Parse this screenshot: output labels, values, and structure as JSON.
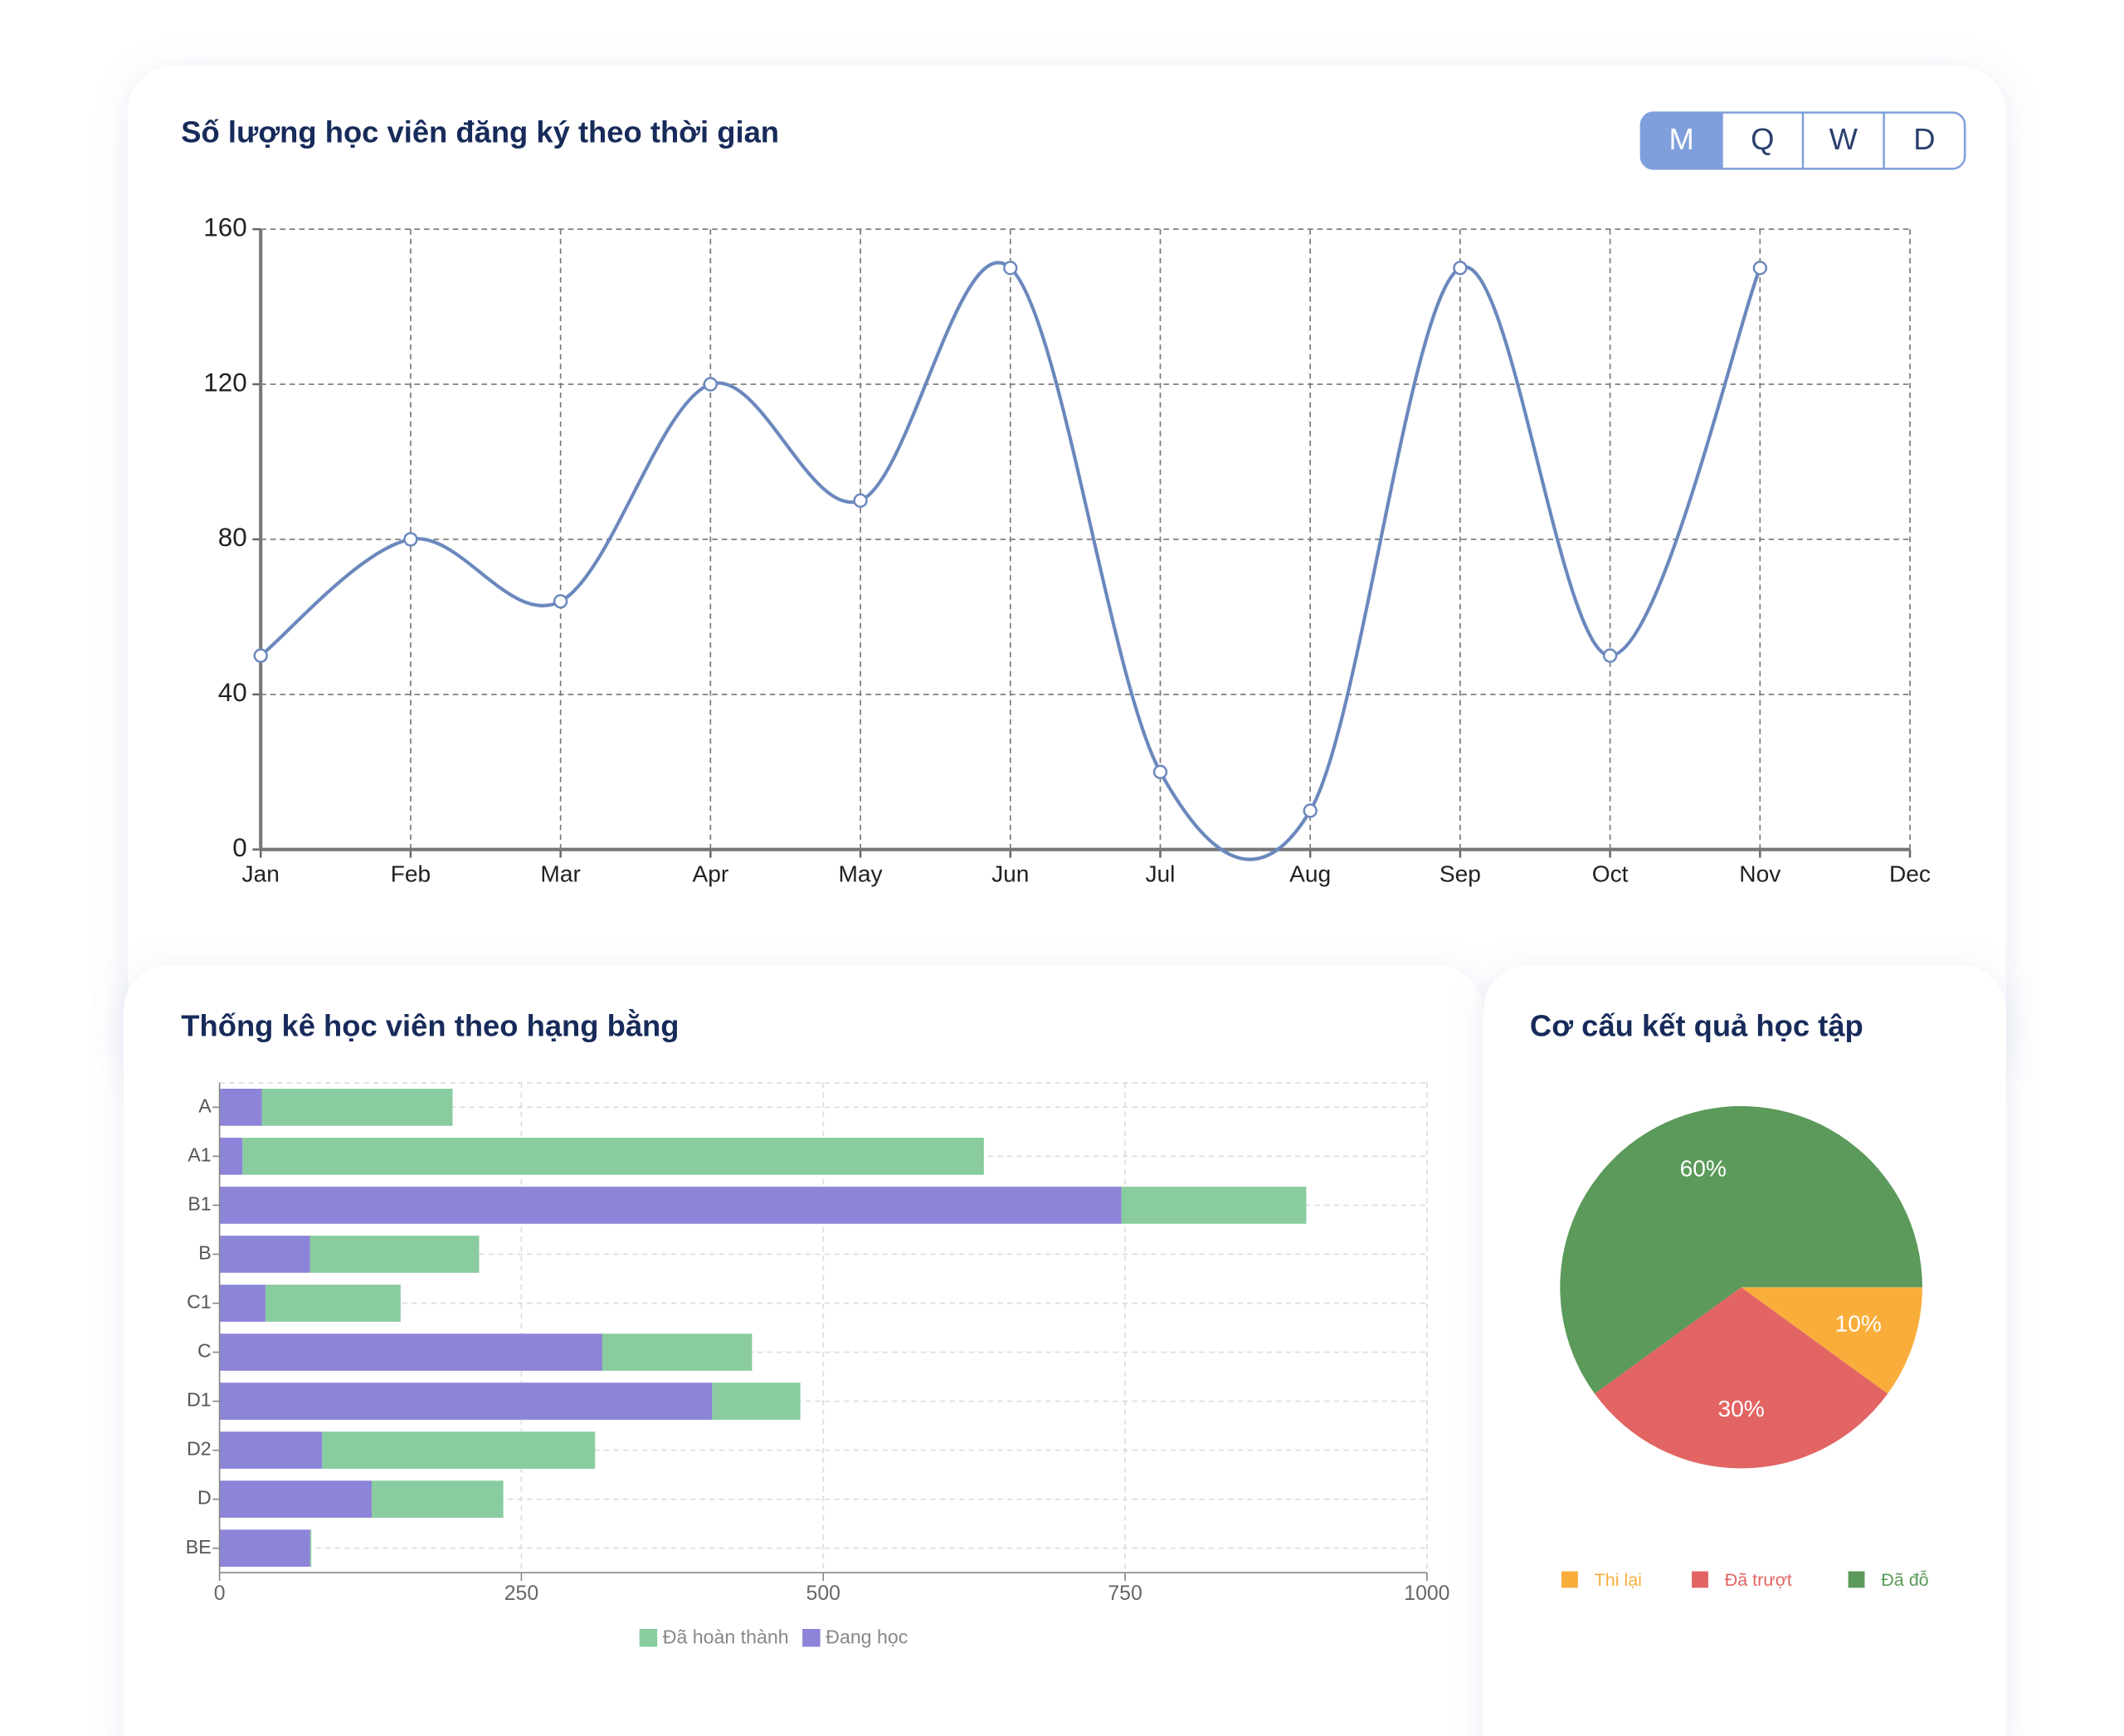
{
  "controls": {
    "period_buttons": [
      "M",
      "Q",
      "W",
      "D"
    ]
  },
  "chart_data": [
    {
      "type": "line",
      "title": "Số lượng học viên đăng ký theo thời gian",
      "categories": [
        "Jan",
        "Feb",
        "Mar",
        "Apr",
        "May",
        "Jun",
        "Jul",
        "Aug",
        "Sep",
        "Oct",
        "Nov",
        "Dec"
      ],
      "values": [
        50,
        80,
        64,
        120,
        90,
        150,
        20,
        10,
        150,
        50,
        150,
        null
      ],
      "color": "#6b88bd",
      "ylim": [
        0,
        160
      ],
      "yticks": [
        0,
        40,
        80,
        120,
        160
      ],
      "grid": true
    },
    {
      "type": "bar",
      "orientation": "horizontal",
      "stacked": true,
      "title": "Thống kê học viên theo hạng bằng",
      "categories": [
        "A",
        "A1",
        "B1",
        "B",
        "C1",
        "C",
        "D1",
        "D2",
        "D",
        "BE"
      ],
      "series": [
        {
          "name": "Đã hoàn thành",
          "color": "#88cc9f",
          "values": [
            158,
            614,
            153,
            140,
            112,
            124,
            73,
            226,
            109,
            1
          ]
        },
        {
          "name": "Đang học",
          "color": "#8c84d8",
          "values": [
            35,
            19,
            747,
            75,
            38,
            317,
            408,
            85,
            126,
            75
          ]
        }
      ],
      "xlim": [
        0,
        1000
      ],
      "xticks": [
        0,
        250,
        500,
        750,
        1000
      ],
      "grid": true,
      "legend": "bottom"
    },
    {
      "type": "pie",
      "title": "Cơ cấu kết quả học tập",
      "categories": [
        "Thi lại",
        "Đã trượt",
        "Đã đỗ"
      ],
      "values": [
        10,
        30,
        60
      ],
      "value_labels": [
        "10%",
        "30%",
        "60%"
      ],
      "colors": [
        "#f9ae3b",
        "#e26563",
        "#5b9a5a"
      ],
      "legend": "bottom"
    }
  ]
}
